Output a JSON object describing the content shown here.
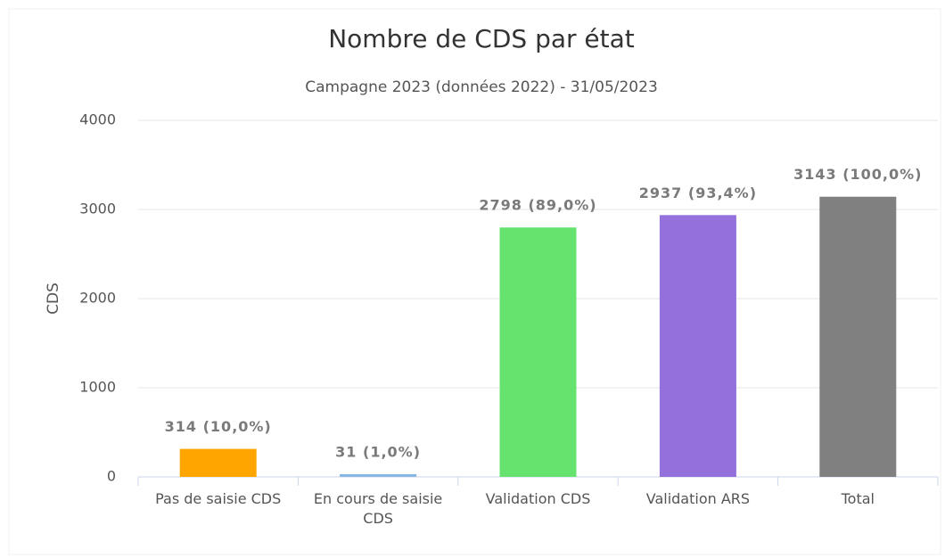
{
  "chart_data": {
    "type": "bar",
    "title": "Nombre de CDS par état",
    "subtitle": "Campagne 2023 (données 2022) - 31/05/2023",
    "y_label": "CDS",
    "categories": [
      "Pas de saisie CDS",
      "En cours de saisie CDS",
      "Validation CDS",
      "Validation ARS",
      "Total"
    ],
    "values": [
      314,
      31,
      2798,
      2937,
      3143
    ],
    "value_labels": [
      "314 (10,0%)",
      "31 (1,0%)",
      "2798 (89,0%)",
      "2937 (93,4%)",
      "3143 (100,0%)"
    ],
    "colors": [
      "#ffa500",
      "#87b6e4",
      "#66e36f",
      "#9370db",
      "#808080"
    ],
    "ylim": [
      0,
      4000
    ],
    "yticks": [
      0,
      1000,
      2000,
      3000,
      4000
    ],
    "grid": true
  }
}
